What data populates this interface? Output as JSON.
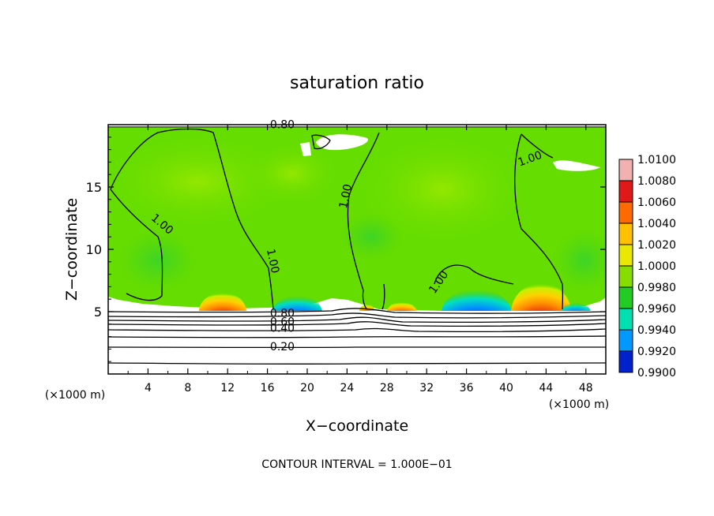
{
  "chart_data": {
    "type": "heatmap",
    "title": "saturation ratio",
    "xlabel": "X−coordinate",
    "ylabel": "Z−coordinate",
    "x_unit_label": "(×1000 m)",
    "y_unit_label": "(×1000 m)",
    "xlim": [
      0,
      50
    ],
    "ylim": [
      0,
      20
    ],
    "x_ticks": [
      "4",
      "8",
      "12",
      "16",
      "20",
      "24",
      "28",
      "32",
      "36",
      "40",
      "44",
      "48"
    ],
    "x_tick_values": [
      4,
      8,
      12,
      16,
      20,
      24,
      28,
      32,
      36,
      40,
      44,
      48
    ],
    "y_ticks": [
      "5",
      "10",
      "15"
    ],
    "y_tick_values": [
      5,
      10,
      15
    ],
    "footer": "CONTOUR INTERVAL = 1.000E−01",
    "colorbar": {
      "labels": [
        "1.0100",
        "1.0080",
        "1.0060",
        "1.0040",
        "1.0020",
        "1.0000",
        "0.9980",
        "0.9960",
        "0.9940",
        "0.9920",
        "0.9900"
      ],
      "colors": [
        "#f2b0b0",
        "#e01818",
        "#ff6a00",
        "#ffc000",
        "#e8e800",
        "#88dd00",
        "#22cc22",
        "#00e0b0",
        "#0099ff",
        "#0022cc",
        "#7a1fa0"
      ]
    },
    "contour_labels": [
      {
        "text": "0.80",
        "x": 17.5,
        "y": 19.7
      },
      {
        "text": "1.00",
        "x": 5.2,
        "y": 11.8,
        "angle": 40
      },
      {
        "text": "1.00",
        "x": 16.2,
        "y": 9.0,
        "angle": 78
      },
      {
        "text": "1.00",
        "x": 24.2,
        "y": 14.2,
        "angle": -78
      },
      {
        "text": "1.00",
        "x": 33.5,
        "y": 7.2,
        "angle": -55
      },
      {
        "text": "1.00",
        "x": 42.5,
        "y": 17.0,
        "angle": -20
      },
      {
        "text": "0.80",
        "x": 17.5,
        "y": 4.6
      },
      {
        "text": "0.60",
        "x": 17.5,
        "y": 3.9
      },
      {
        "text": "0.40",
        "x": 17.5,
        "y": 3.4
      },
      {
        "text": "0.20",
        "x": 17.5,
        "y": 1.9
      }
    ],
    "warm_anomalies": [
      {
        "x": 11.5,
        "value": 1.008,
        "width": 2.4
      },
      {
        "x": 26.0,
        "value": 1.008,
        "width": 0.8
      },
      {
        "x": 29.5,
        "value": 1.006,
        "width": 1.5
      },
      {
        "x": 43.5,
        "value": 1.01,
        "width": 3.0
      }
    ],
    "cold_anomalies": [
      {
        "x": 19.0,
        "value": 0.992,
        "width": 2.5
      },
      {
        "x": 37.0,
        "value": 0.992,
        "width": 3.5
      },
      {
        "x": 47.0,
        "value": 0.993,
        "width": 1.5
      }
    ]
  }
}
